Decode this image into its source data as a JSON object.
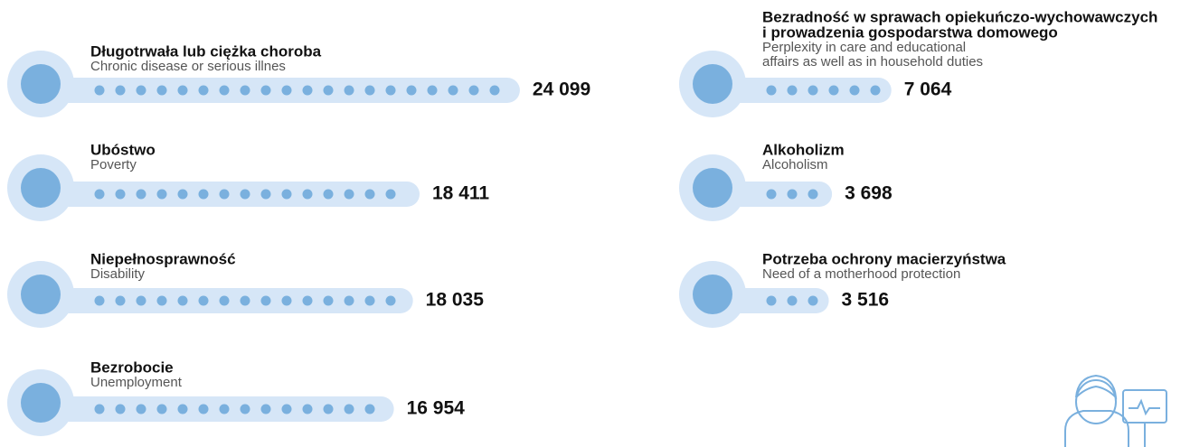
{
  "chart_data": {
    "type": "pictogram",
    "categories": [
      [
        "Długotrwała lub ciężka choroba"
      ],
      [
        "Ubóstwo"
      ],
      [
        "Niepełnosprawność"
      ],
      [
        "Bezrobocie"
      ],
      [
        "Bezradność w sprawach opiekuńczo-wychowawczych",
        "i prowadzenia gospodarstwa domowego"
      ],
      [
        "Alkoholizm"
      ],
      [
        "Potrzeba ochrony macierzyństwa"
      ]
    ],
    "subtitles": [
      [
        "Chronic disease or serious illnes"
      ],
      [
        "Poverty"
      ],
      [
        "Disability"
      ],
      [
        "Unemployment"
      ],
      [
        "Perplexity in care and educational",
        "affairs as well as in household duties"
      ],
      [
        "Alcoholism"
      ],
      [
        "Need of a motherhood protection"
      ]
    ],
    "values": [
      24099,
      18411,
      18035,
      16954,
      7064,
      3698,
      3516
    ],
    "value_labels": [
      "24 099",
      "18 411",
      "18 035",
      "16 954",
      "7 064",
      "3 698",
      "3 516"
    ],
    "color": "#7ab0de",
    "track_color": "#d6e6f7"
  }
}
